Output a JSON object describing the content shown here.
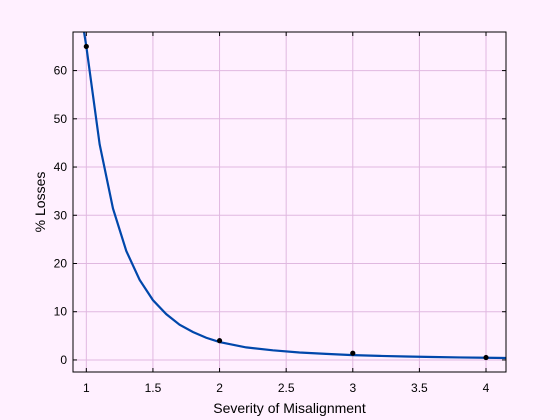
{
  "chart_data": {
    "type": "scatter",
    "xlabel": "Severity of Misalignment",
    "ylabel": "% Losses",
    "xlim": [
      0.9,
      4.15
    ],
    "ylim": [
      -2.5,
      68
    ],
    "xticks": [
      "1",
      "1.5",
      "2",
      "2.5",
      "3",
      "3.5",
      "4"
    ],
    "yticks": [
      "0",
      "10",
      "20",
      "30",
      "40",
      "50",
      "60"
    ],
    "grid": true,
    "points": {
      "x": [
        1,
        2,
        3,
        4
      ],
      "y": [
        65,
        4,
        1.4,
        0.5
      ]
    },
    "fit_curve": {
      "x": [
        0.98,
        1,
        1.1,
        1.2,
        1.3,
        1.4,
        1.5,
        1.6,
        1.7,
        1.8,
        1.9,
        2,
        2.2,
        2.4,
        2.6,
        2.8,
        3,
        3.2,
        3.4,
        3.6,
        3.8,
        4,
        4.15
      ],
      "y": [
        68.5,
        65,
        44.7,
        31.4,
        22.6,
        16.6,
        12.4,
        9.5,
        7.3,
        5.8,
        4.6,
        3.7,
        2.6,
        2.0,
        1.55,
        1.25,
        1.0,
        0.84,
        0.71,
        0.61,
        0.52,
        0.45,
        0.4
      ]
    },
    "colors": {
      "curve": "#0047ab",
      "points": "#000000",
      "grid": "#e0b8e0",
      "background": "#fff0ff"
    }
  }
}
